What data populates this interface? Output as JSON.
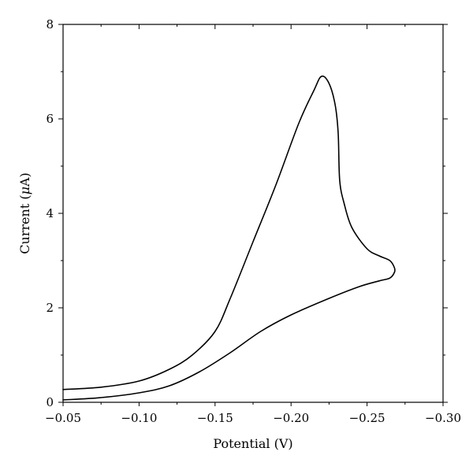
{
  "chart_data": {
    "type": "line",
    "xlabel": "Potential (V)",
    "ylabel_prefix": "Current (",
    "ylabel_unit": "μ",
    "ylabel_suffix": "A)",
    "xlim": [
      -0.05,
      -0.3
    ],
    "ylim": [
      0,
      8
    ],
    "x_ticks": [
      -0.05,
      -0.1,
      -0.15,
      -0.2,
      -0.25,
      -0.3
    ],
    "x_tick_labels": [
      "−0.05",
      "−0.10",
      "−0.15",
      "−0.20",
      "−0.25",
      "−0.30"
    ],
    "y_ticks": [
      0,
      2,
      4,
      6,
      8
    ],
    "y_tick_labels": [
      "0",
      "2",
      "4",
      "6",
      "8"
    ],
    "grid": false,
    "series": [
      {
        "color": "#000000",
        "x": [
          -0.05,
          -0.075,
          -0.1,
          -0.12,
          -0.135,
          -0.15,
          -0.16,
          -0.175,
          -0.19,
          -0.205,
          -0.215,
          -0.22,
          -0.225,
          -0.229,
          -0.231,
          -0.232,
          -0.235,
          -0.24,
          -0.25,
          -0.258,
          -0.265,
          -0.268,
          -0.268,
          -0.265,
          -0.258,
          -0.245,
          -0.225,
          -0.2,
          -0.18,
          -0.16,
          -0.14,
          -0.12,
          -0.1,
          -0.075,
          -0.05
        ],
        "y": [
          0.27,
          0.32,
          0.45,
          0.7,
          1.0,
          1.5,
          2.2,
          3.4,
          4.6,
          5.9,
          6.6,
          6.9,
          6.75,
          6.3,
          5.7,
          4.7,
          4.2,
          3.7,
          3.25,
          3.1,
          3.0,
          2.85,
          2.75,
          2.63,
          2.57,
          2.45,
          2.2,
          1.85,
          1.5,
          1.05,
          0.65,
          0.35,
          0.2,
          0.1,
          0.05
        ]
      }
    ]
  }
}
